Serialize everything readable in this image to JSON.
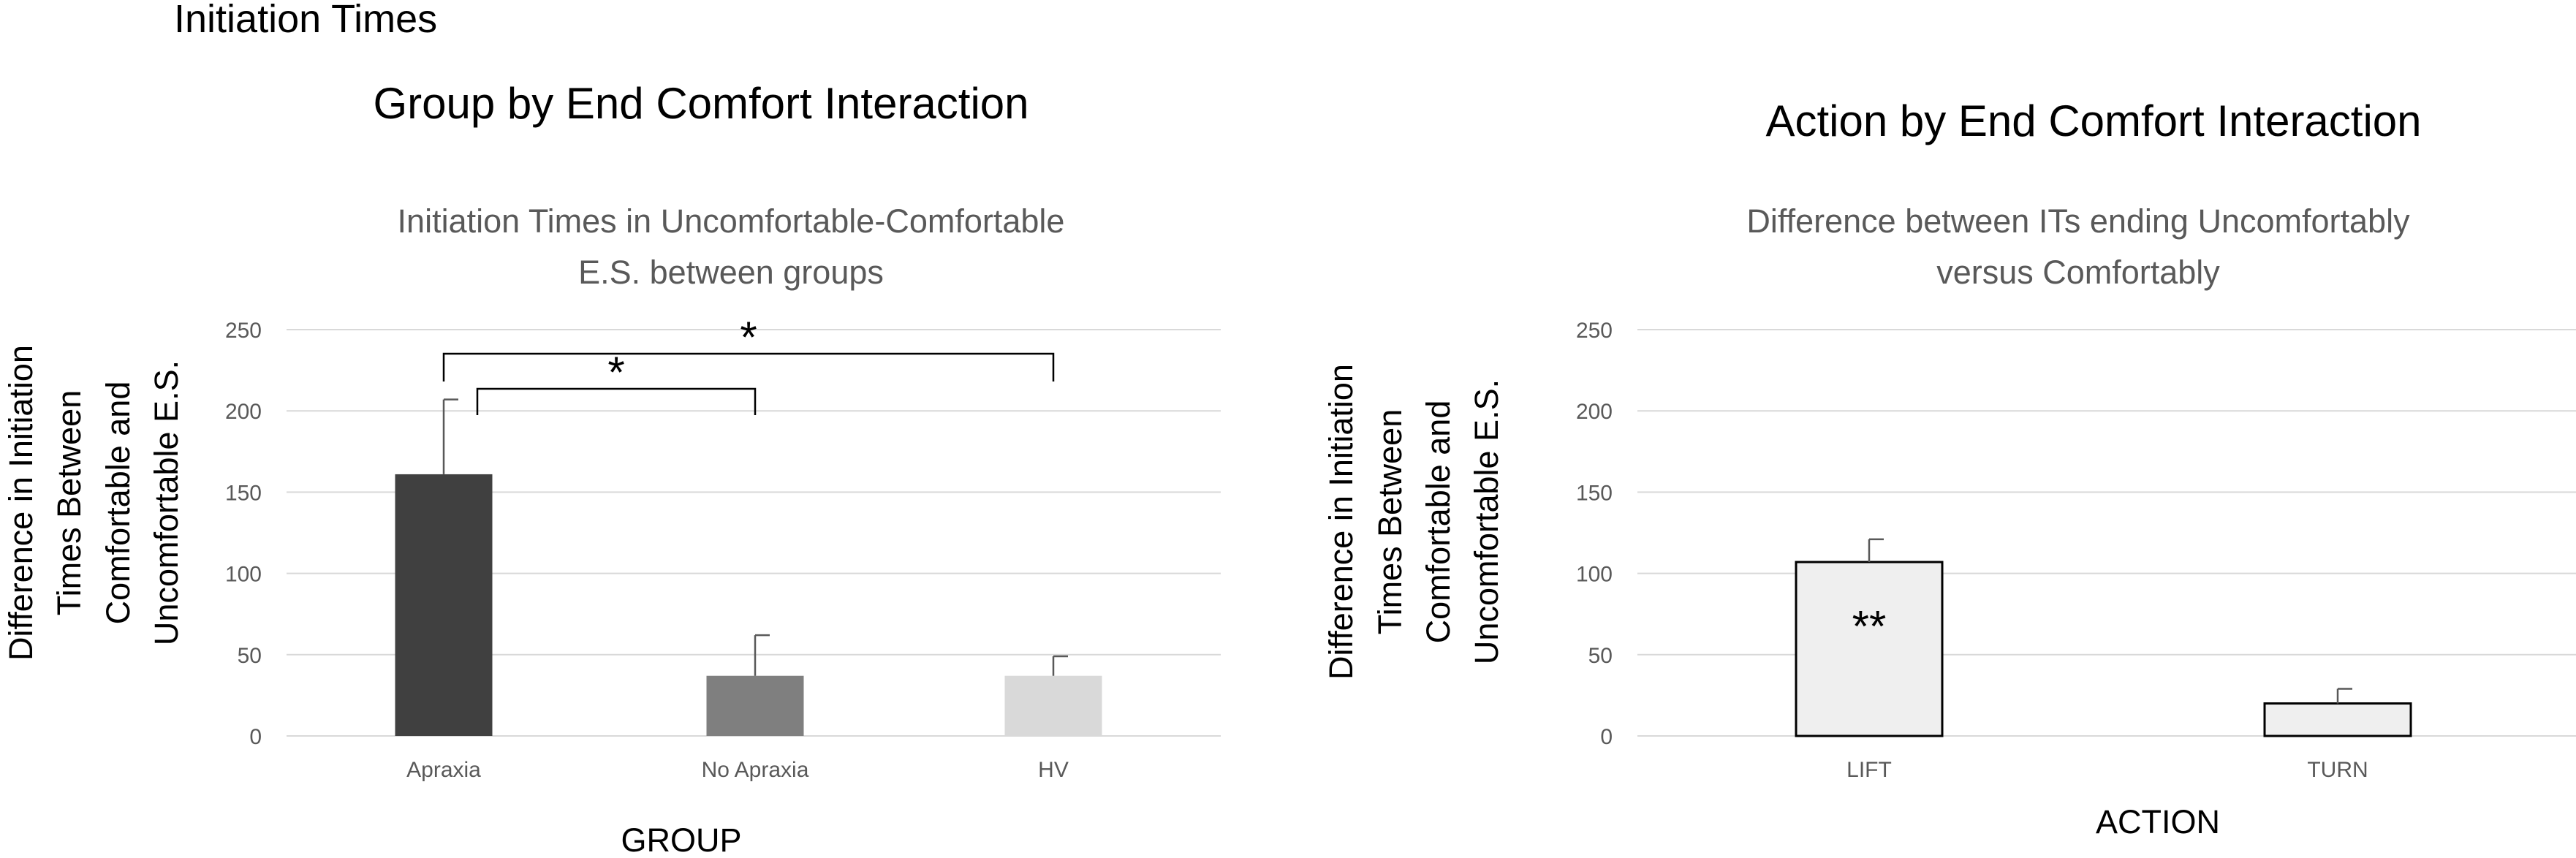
{
  "page": {
    "section_title": "Initiation Times"
  },
  "chart_data": [
    {
      "type": "bar",
      "panel_title": "Group by End Comfort Interaction",
      "title_lines": [
        "Initiation Times in Uncomfortable-Comfortable",
        "E.S. between groups"
      ],
      "xlabel": "GROUP",
      "ylabel_lines": [
        "Difference in Initiation",
        "Times Between",
        "Comfortable and",
        "Uncomfortable E.S."
      ],
      "categories": [
        "Apraxia",
        "No Apraxia",
        "HV"
      ],
      "values": [
        161,
        37,
        37
      ],
      "errors": [
        46,
        25,
        12
      ],
      "colors": [
        "#404040",
        "#7f7f7f",
        "#d9d9d9"
      ],
      "ylim": [
        0,
        250
      ],
      "yticks": [
        0,
        50,
        100,
        150,
        200,
        250
      ],
      "grid": true,
      "significance": [
        {
          "from": "Apraxia",
          "to": "HV",
          "label": "*"
        },
        {
          "from": "Apraxia",
          "to": "No Apraxia",
          "label": "*"
        }
      ]
    },
    {
      "type": "bar",
      "panel_title": "Action by End Comfort Interaction",
      "title_lines": [
        "Difference between ITs ending Uncomfortably",
        "versus Comfortably"
      ],
      "xlabel": "ACTION",
      "ylabel_lines": [
        "Difference in Initiation",
        "Times Between",
        "Comfortable and",
        "Uncomfortable E.S."
      ],
      "categories": [
        "LIFT",
        "TURN"
      ],
      "values": [
        107,
        20
      ],
      "errors": [
        14,
        9
      ],
      "colors": [
        "#efefef",
        "#efefef"
      ],
      "ylim": [
        0,
        250
      ],
      "yticks": [
        0,
        50,
        100,
        150,
        200,
        250
      ],
      "grid": true,
      "bar_annotations": [
        {
          "category": "LIFT",
          "label": "**"
        }
      ]
    }
  ]
}
